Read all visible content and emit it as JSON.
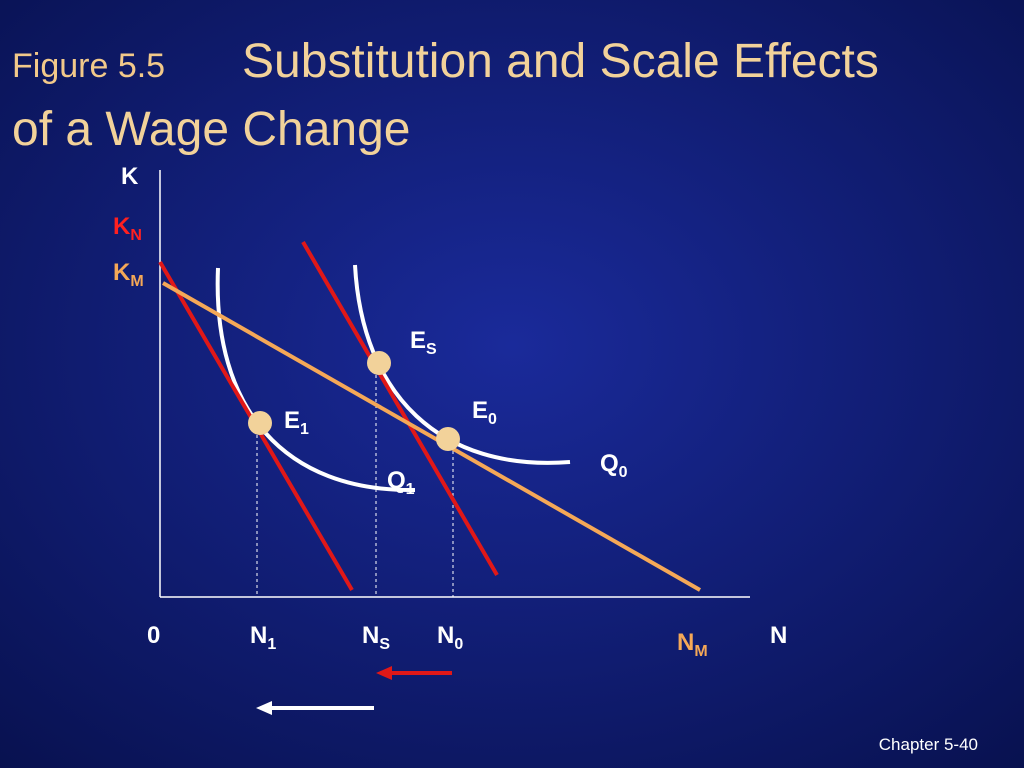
{
  "header": {
    "figure": "Figure 5.5",
    "title_line1": "Substitution and Scale Effects",
    "title_line2": "of a Wage Change"
  },
  "axes": {
    "y": "K",
    "x": "N",
    "origin": "0"
  },
  "labels": {
    "k_n": {
      "main": "K",
      "sub": "N"
    },
    "k_m": {
      "main": "K",
      "sub": "M"
    },
    "e_s": {
      "main": "E",
      "sub": "S"
    },
    "e_1": {
      "main": "E",
      "sub": "1"
    },
    "e_0": {
      "main": "E",
      "sub": "0"
    },
    "q_0": {
      "main": "Q",
      "sub": "0"
    },
    "q_1": {
      "main": "Q",
      "sub": "1"
    },
    "n_1": {
      "main": "N",
      "sub": "1"
    },
    "n_s": {
      "main": "N",
      "sub": "S"
    },
    "n_0": {
      "main": "N",
      "sub": "0"
    },
    "n_m": {
      "main": "N",
      "sub": "M"
    }
  },
  "footer": "Chapter 5-40"
}
